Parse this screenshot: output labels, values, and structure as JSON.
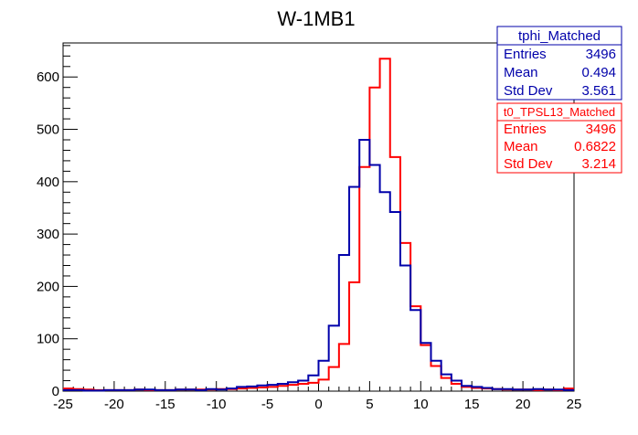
{
  "chart_data": {
    "type": "histogram",
    "title": "W-1MB1",
    "xlabel": "",
    "ylabel": "",
    "xlim": [
      -25,
      25
    ],
    "ylim": [
      0,
      665
    ],
    "bin_width": 1,
    "x_ticks": [
      -25,
      -20,
      -15,
      -10,
      -5,
      0,
      5,
      10,
      15,
      20,
      25
    ],
    "y_ticks": [
      0,
      100,
      200,
      300,
      400,
      500,
      600
    ],
    "series": [
      {
        "name": "tphi_Matched",
        "color": "#0000aa",
        "stats": {
          "entries_label": "Entries",
          "entries": "3496",
          "mean_label": "Mean",
          "mean": "0.494",
          "std_label": "Std Dev",
          "std": "3.561"
        },
        "bin_edges_start": -25,
        "values": [
          2,
          2,
          1,
          1,
          2,
          2,
          2,
          3,
          3,
          2,
          2,
          3,
          3,
          2,
          4,
          3,
          5,
          8,
          9,
          11,
          12,
          14,
          17,
          20,
          30,
          58,
          125,
          260,
          390,
          480,
          432,
          380,
          342,
          240,
          155,
          92,
          58,
          32,
          20,
          10,
          8,
          6,
          4,
          4,
          3,
          3,
          4,
          3,
          3,
          2
        ]
      },
      {
        "name": "t0_TPSL13_Matched",
        "color": "#ff0000",
        "stats": {
          "entries_label": "Entries",
          "entries": "3496",
          "mean_label": "Mean",
          "mean": "0.6822",
          "std_label": "Std Dev",
          "std": "3.214"
        },
        "bin_edges_start": -25,
        "values": [
          5,
          4,
          3,
          2,
          2,
          2,
          2,
          3,
          2,
          2,
          2,
          3,
          3,
          3,
          3,
          4,
          4,
          5,
          6,
          7,
          8,
          10,
          12,
          14,
          16,
          22,
          46,
          90,
          208,
          428,
          580,
          635,
          447,
          283,
          162,
          88,
          48,
          25,
          14,
          8,
          6,
          5,
          4,
          3,
          3,
          3,
          2,
          3,
          2,
          5
        ]
      }
    ]
  }
}
